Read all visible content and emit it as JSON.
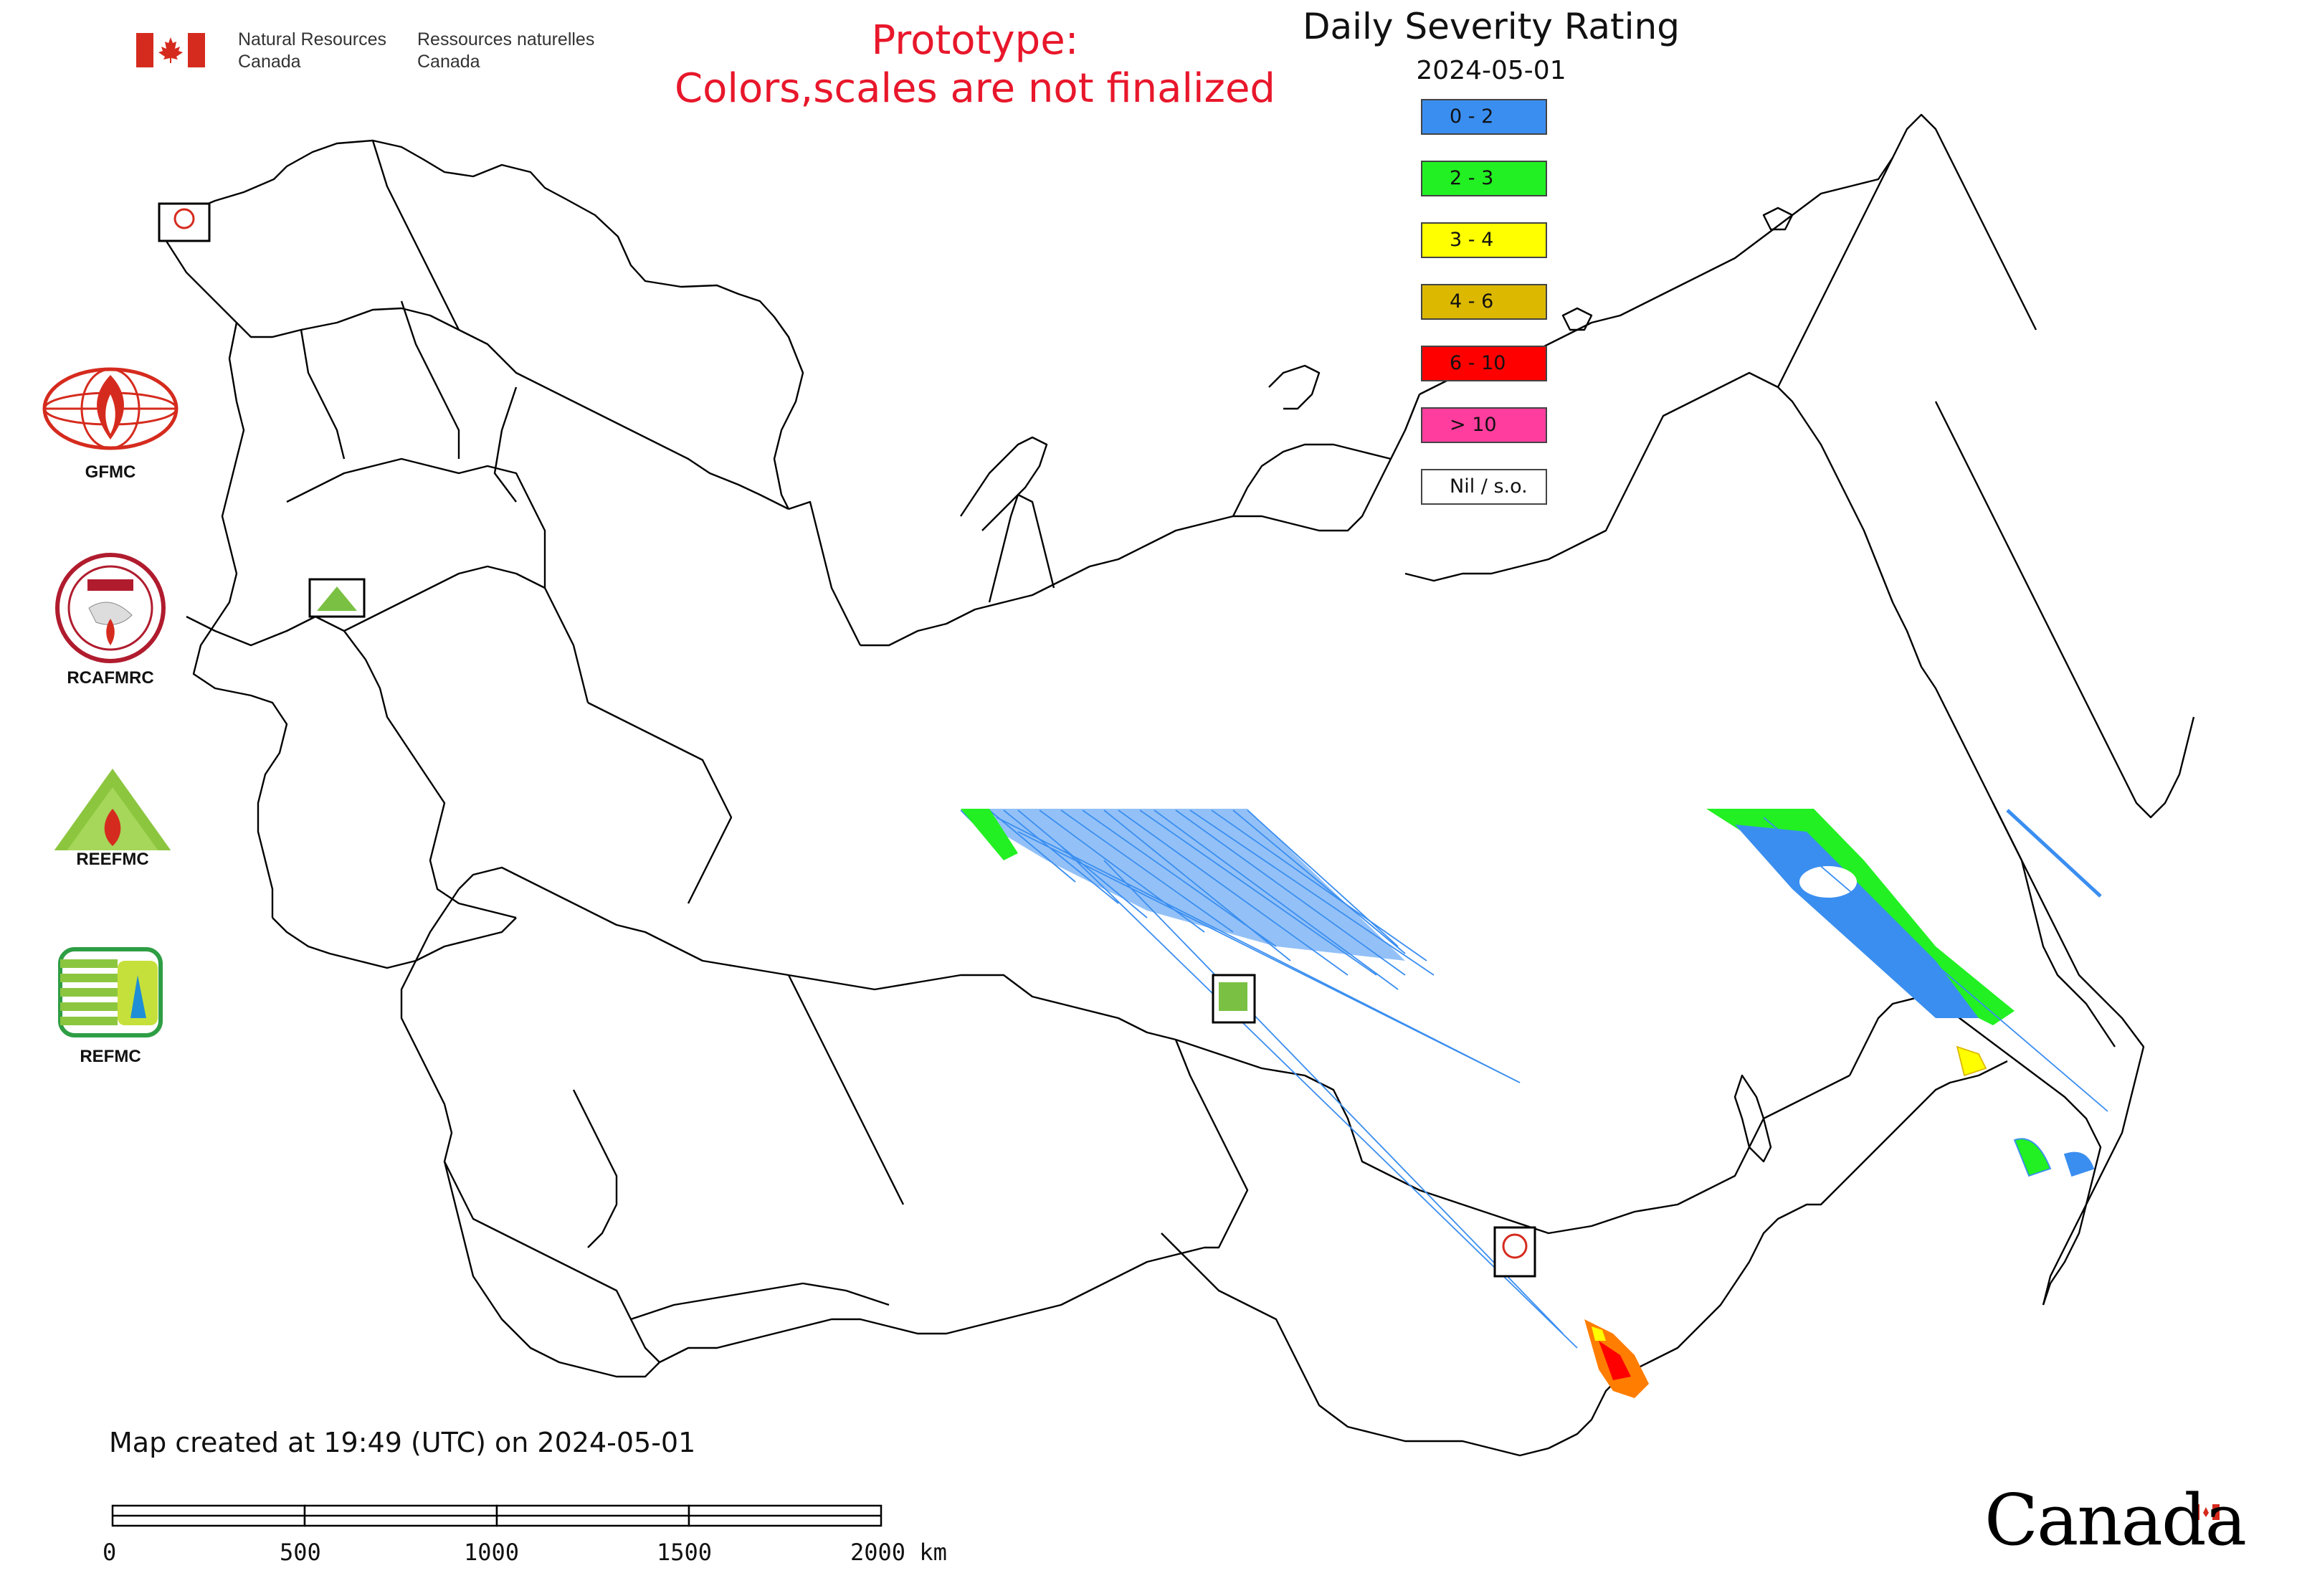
{
  "header": {
    "agency_en_line1": "Natural Resources",
    "agency_en_line2": "Canada",
    "agency_fr_line1": "Ressources naturelles",
    "agency_fr_line2": "Canada",
    "prototype_line1": "Prototype:",
    "prototype_line2": "Colors,scales are not finalized"
  },
  "legend": {
    "title": "Daily Severity Rating",
    "date": "2024-05-01",
    "items": [
      {
        "label": "0 - 2",
        "color": "#3a8ef0"
      },
      {
        "label": "2 - 3",
        "color": "#22f022"
      },
      {
        "label": "3 - 4",
        "color": "#ffff00"
      },
      {
        "label": "4 - 6",
        "color": "#dcb800"
      },
      {
        "label": "6 - 10",
        "color": "#ff0000"
      },
      {
        "label": "> 10",
        "color": "#ff3d9e"
      },
      {
        "label": "Nil / s.o.",
        "color": "#ffffff"
      }
    ]
  },
  "logos": [
    {
      "label": "GFMC",
      "icon": "gfmc-logo-icon"
    },
    {
      "label": "RCAFMRC",
      "icon": "rcafmrc-logo-icon"
    },
    {
      "label": "",
      "icon": "reefmc-logo-icon"
    },
    {
      "label": "REFMC",
      "icon": "refmc-logo-icon"
    }
  ],
  "footer": {
    "created_text": "Map created at 19:49 (UTC) on 2024-05-01",
    "scale_labels": [
      "0",
      "500",
      "1000",
      "1500",
      "2000 km"
    ],
    "canada_wordmark": "Canada"
  },
  "colors": {
    "prototype_text": "#e8172b",
    "flag_red": "#d52b1e",
    "map_outline": "#000000"
  }
}
